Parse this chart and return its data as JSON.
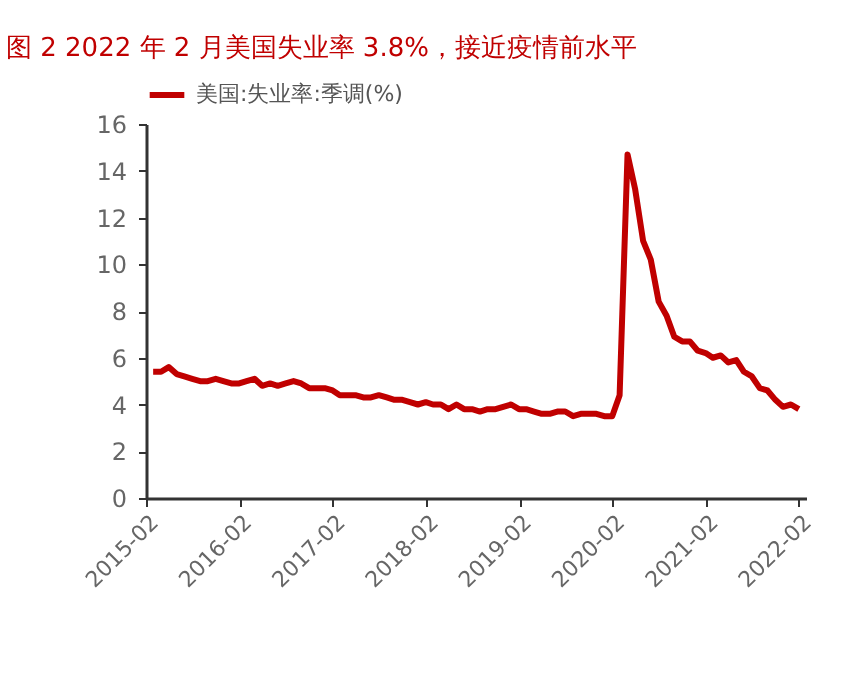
{
  "chart_data": {
    "type": "line",
    "title": "图 2 2022 年 2 月美国失业率 3.8%，接近疫情前水平",
    "x": [
      "2015-03",
      "2015-04",
      "2015-05",
      "2015-06",
      "2015-07",
      "2015-08",
      "2015-09",
      "2015-10",
      "2015-11",
      "2015-12",
      "2016-01",
      "2016-02",
      "2016-03",
      "2016-04",
      "2016-05",
      "2016-06",
      "2016-07",
      "2016-08",
      "2016-09",
      "2016-10",
      "2016-11",
      "2016-12",
      "2017-01",
      "2017-02",
      "2017-03",
      "2017-04",
      "2017-05",
      "2017-06",
      "2017-07",
      "2017-08",
      "2017-09",
      "2017-10",
      "2017-11",
      "2017-12",
      "2018-01",
      "2018-02",
      "2018-03",
      "2018-04",
      "2018-05",
      "2018-06",
      "2018-07",
      "2018-08",
      "2018-09",
      "2018-10",
      "2018-11",
      "2018-12",
      "2019-01",
      "2019-02",
      "2019-03",
      "2019-04",
      "2019-05",
      "2019-06",
      "2019-07",
      "2019-08",
      "2019-09",
      "2019-10",
      "2019-11",
      "2019-12",
      "2020-01",
      "2020-02",
      "2020-03",
      "2020-04",
      "2020-05",
      "2020-06",
      "2020-07",
      "2020-08",
      "2020-09",
      "2020-10",
      "2020-11",
      "2020-12",
      "2021-01",
      "2021-02",
      "2021-03",
      "2021-04",
      "2021-05",
      "2021-06",
      "2021-07",
      "2021-08",
      "2021-09",
      "2021-10",
      "2021-11",
      "2021-12",
      "2022-01",
      "2022-02"
    ],
    "series": [
      {
        "name": "美国:失业率:季调(%)",
        "color": "#c00000",
        "values": [
          5.4,
          5.4,
          5.6,
          5.3,
          5.2,
          5.1,
          5.0,
          5.0,
          5.1,
          5.0,
          4.9,
          4.9,
          5.0,
          5.1,
          4.8,
          4.9,
          4.8,
          4.9,
          5.0,
          4.9,
          4.7,
          4.7,
          4.7,
          4.6,
          4.4,
          4.4,
          4.4,
          4.3,
          4.3,
          4.4,
          4.3,
          4.2,
          4.2,
          4.1,
          4.0,
          4.1,
          4.0,
          4.0,
          3.8,
          4.0,
          3.8,
          3.8,
          3.7,
          3.8,
          3.8,
          3.9,
          4.0,
          3.8,
          3.8,
          3.7,
          3.6,
          3.6,
          3.7,
          3.7,
          3.5,
          3.6,
          3.6,
          3.6,
          3.5,
          3.5,
          4.4,
          14.7,
          13.2,
          11.0,
          10.2,
          8.4,
          7.8,
          6.9,
          6.7,
          6.7,
          6.3,
          6.2,
          6.0,
          6.1,
          5.8,
          5.9,
          5.4,
          5.2,
          4.7,
          4.6,
          4.2,
          3.9,
          4.0,
          3.8
        ]
      }
    ],
    "xlim": [
      "2015-02",
      "2022-03"
    ],
    "xticks": [
      "2015-02",
      "2016-02",
      "2017-02",
      "2018-02",
      "2019-02",
      "2020-02",
      "2021-02",
      "2022-02"
    ],
    "ylim": [
      0,
      16
    ],
    "yticks": [
      0,
      2,
      4,
      6,
      8,
      10,
      12,
      14,
      16
    ],
    "grid": false,
    "legend": "top",
    "marker": "none",
    "line_style": "solid"
  }
}
